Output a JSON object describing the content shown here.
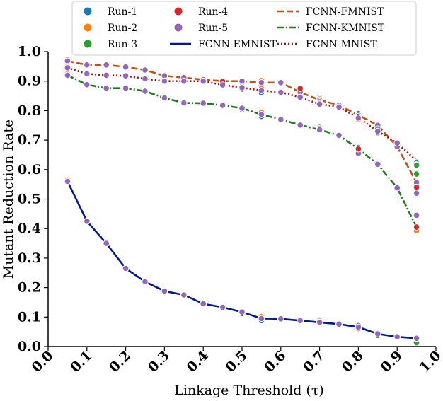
{
  "chart_data": {
    "type": "line",
    "title": "",
    "xlabel": "Linkage Threshold (τ)",
    "ylabel": "Mutant Reduction Rate",
    "xlim": [
      0.0,
      1.0
    ],
    "ylim": [
      0.0,
      1.0
    ],
    "xticks": [
      "0.0",
      "0.1",
      "0.2",
      "0.3",
      "0.4",
      "0.5",
      "0.6",
      "0.7",
      "0.8",
      "0.9",
      "1.0"
    ],
    "yticks": [
      "0.0",
      "0.1",
      "0.2",
      "0.3",
      "0.4",
      "0.5",
      "0.6",
      "0.7",
      "0.8",
      "0.9",
      "1.0"
    ],
    "x": [
      0.05,
      0.1,
      0.15,
      0.2,
      0.25,
      0.3,
      0.35,
      0.4,
      0.45,
      0.5,
      0.55,
      0.6,
      0.65,
      0.7,
      0.75,
      0.8,
      0.85,
      0.9,
      0.95
    ],
    "legend_position": "top-right",
    "lines": [
      {
        "name": "FCNN-EMNIST",
        "color": "#001a8c",
        "style": "solid",
        "values": [
          0.56,
          0.425,
          0.35,
          0.265,
          0.22,
          0.188,
          0.175,
          0.145,
          0.133,
          0.117,
          0.095,
          0.094,
          0.088,
          0.082,
          0.076,
          0.066,
          0.043,
          0.033,
          0.028
        ]
      },
      {
        "name": "FCNN-FMNIST",
        "color": "#c44e10",
        "style": "dashed",
        "values": [
          0.968,
          0.955,
          0.955,
          0.948,
          0.938,
          0.918,
          0.912,
          0.905,
          0.9,
          0.9,
          0.895,
          0.895,
          0.862,
          0.836,
          0.818,
          0.785,
          0.75,
          0.678,
          0.556
        ]
      },
      {
        "name": "FCNN-KMNIST",
        "color": "#1d7a1d",
        "style": "dashdot",
        "values": [
          0.92,
          0.888,
          0.876,
          0.876,
          0.866,
          0.843,
          0.826,
          0.825,
          0.818,
          0.808,
          0.787,
          0.77,
          0.751,
          0.735,
          0.716,
          0.67,
          0.618,
          0.538,
          0.405
        ]
      },
      {
        "name": "FCNN-MNIST",
        "color": "#9e0f0f",
        "style": "dotted",
        "values": [
          0.945,
          0.925,
          0.92,
          0.918,
          0.908,
          0.9,
          0.9,
          0.9,
          0.887,
          0.878,
          0.868,
          0.862,
          0.845,
          0.822,
          0.812,
          0.775,
          0.73,
          0.69,
          0.63
        ]
      }
    ],
    "runs": [
      {
        "name": "Run-1",
        "color": "#1f77b4"
      },
      {
        "name": "Run-2",
        "color": "#ff7f0e"
      },
      {
        "name": "Run-3",
        "color": "#2ca02c"
      },
      {
        "name": "Run-4",
        "color": "#d62728"
      },
      {
        "name": "Run-5",
        "color": "#9467bd"
      }
    ],
    "run_offsets": [
      [
        0.0,
        0.0,
        0.0,
        0.0,
        0.0,
        0.0,
        0.0,
        0.0,
        0.0,
        0.0,
        -0.007,
        0.0,
        0.0,
        0.008,
        0.0,
        0.005,
        0.0,
        0.0,
        -0.005
      ],
      [
        0.005,
        0.0,
        0.0,
        0.0,
        0.0,
        0.0,
        0.0,
        0.0,
        0.0,
        0.0,
        0.007,
        0.0,
        0.0,
        0.004,
        0.0,
        -0.005,
        0.0,
        0.0,
        -0.012
      ],
      [
        0.0,
        0.0,
        0.0,
        0.0,
        0.0,
        0.0,
        0.0,
        0.0,
        0.0,
        -0.005,
        0.0,
        0.0,
        0.0,
        0.0,
        0.0,
        0.0,
        -0.005,
        0.0,
        -0.015
      ],
      [
        0.0,
        0.0,
        0.0,
        0.0,
        0.0,
        0.0,
        0.0,
        0.0,
        0.0,
        0.0,
        0.0,
        0.0,
        0.0,
        0.0,
        0.0,
        0.0,
        0.0,
        0.0,
        0.0
      ],
      [
        0.0,
        0.0,
        0.0,
        0.0,
        0.0,
        0.0,
        0.0,
        0.0,
        0.0,
        0.0,
        0.0,
        0.0,
        0.0,
        0.0,
        0.0,
        0.0,
        0.0,
        0.0,
        0.0
      ]
    ],
    "run_offsets_line_extra": [
      {
        "line": "FCNN-MNIST",
        "run": "Run-4",
        "values": [
          0.0,
          0.0,
          0.0,
          0.0,
          0.0,
          0.0,
          0.0,
          0.0,
          0.012,
          0.0,
          0.0,
          0.0,
          0.03,
          0.0,
          0.0,
          -0.105,
          0.0,
          0.0,
          -0.09
        ]
      },
      {
        "line": "FCNN-MNIST",
        "run": "Run-5",
        "values": [
          0.0,
          0.0,
          0.0,
          0.0,
          0.0,
          0.0,
          0.0,
          0.0,
          0.0,
          0.0,
          0.0,
          0.0,
          0.0,
          0.0,
          0.0,
          0.0,
          0.0,
          0.0,
          -0.11
        ]
      },
      {
        "line": "FCNN-KMNIST",
        "run": "Run-3",
        "values": [
          0.0,
          0.0,
          0.0,
          0.0,
          0.0,
          0.0,
          0.0,
          0.0,
          0.0,
          0.0,
          0.0,
          0.0,
          0.0,
          0.0,
          0.0,
          0.0,
          0.125,
          0.0,
          0.195
        ]
      },
      {
        "line": "FCNN-KMNIST",
        "run": "Run-5",
        "values": [
          0.0,
          0.0,
          0.0,
          0.0,
          0.0,
          0.0,
          0.0,
          0.0,
          0.0,
          0.0,
          0.0,
          0.0,
          0.0,
          0.0,
          0.0,
          -0.015,
          0.0,
          0.0,
          0.04
        ]
      }
    ]
  }
}
